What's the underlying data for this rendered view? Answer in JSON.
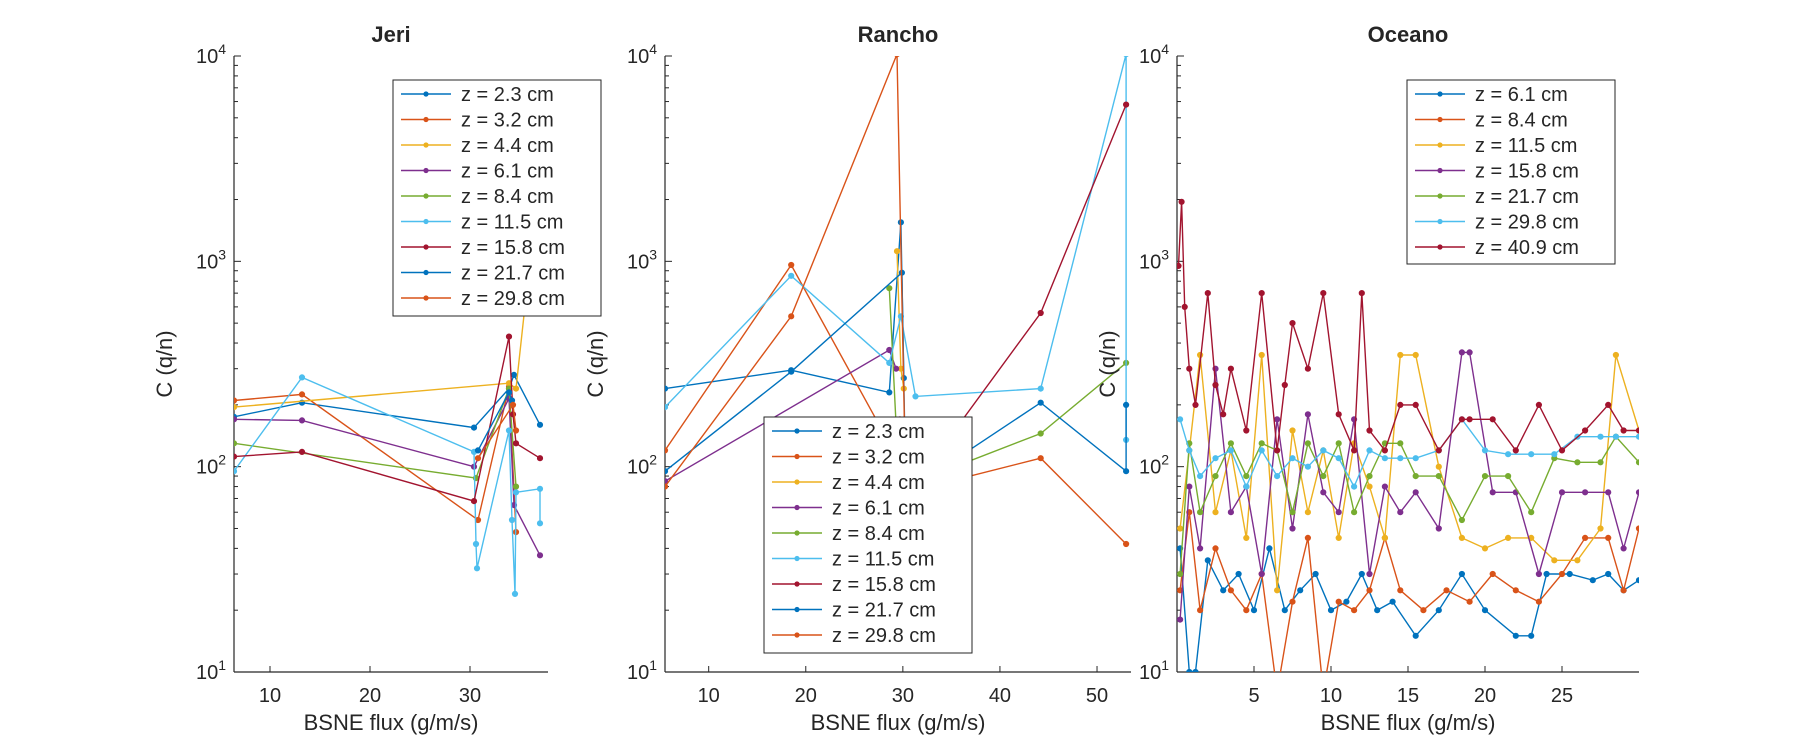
{
  "chart_data": [
    {
      "type": "line",
      "title": "Jeri",
      "xlabel": "BSNE flux (g/m/s)",
      "ylabel": "C (q/n)",
      "xlim": [
        6.4,
        37.8
      ],
      "ylim": [
        10,
        10000
      ],
      "yscale": "log",
      "xticks": [
        10,
        20,
        30
      ],
      "legend_location": "top-right",
      "series": [
        {
          "name": "z = 2.3 cm",
          "color": "#0072BD",
          "x": [
            6.4,
            13.2,
            30.4,
            33.9,
            34.4,
            37.0
          ],
          "y": [
            175,
            205,
            155,
            240,
            280,
            160
          ]
        },
        {
          "name": "z = 3.2 cm",
          "color": "#D95319",
          "x": [
            6.4,
            13.2,
            30.8,
            33.9,
            34.6
          ],
          "y": [
            210,
            225,
            55,
            245,
            48
          ]
        },
        {
          "name": "z = 4.4 cm",
          "color": "#EDB120",
          "x": [
            6.4,
            33.9,
            34.6,
            37.0
          ],
          "y": [
            195,
            255,
            240,
            2850
          ]
        },
        {
          "name": "z = 6.1 cm",
          "color": "#7E2F8E",
          "x": [
            6.4,
            13.2,
            30.4,
            33.9,
            34.4,
            37.0
          ],
          "y": [
            170,
            168,
            100,
            215,
            65,
            37
          ]
        },
        {
          "name": "z = 8.4 cm",
          "color": "#77AC30",
          "x": [
            6.4,
            30.6,
            33.9,
            34.6
          ],
          "y": [
            130,
            88,
            240,
            80
          ]
        },
        {
          "name": "z = 11.5 cm",
          "color": "#4DBEEE",
          "x": [
            6.4,
            13.2,
            30.4,
            30.6,
            30.7,
            33.9,
            34.2,
            34.5,
            34.6,
            37.0,
            37.0
          ],
          "y": [
            95,
            272,
            118,
            42,
            32,
            150,
            55,
            24,
            75,
            78,
            53
          ]
        },
        {
          "name": "z = 15.8 cm",
          "color": "#A2142F",
          "x": [
            6.4,
            13.2,
            30.4,
            33.9,
            34.3,
            34.6,
            37.0
          ],
          "y": [
            112,
            118,
            68,
            430,
            180,
            130,
            110
          ]
        },
        {
          "name": "z = 21.7 cm",
          "color": "#0072BD",
          "x": [
            30.8,
            33.9,
            34.2
          ],
          "y": [
            120,
            230,
            210
          ]
        },
        {
          "name": "z = 29.8 cm",
          "color": "#D95319",
          "x": [
            30.8,
            34.3,
            34.6
          ],
          "y": [
            110,
            200,
            150
          ]
        }
      ]
    },
    {
      "type": "line",
      "title": "Rancho",
      "xlabel": "BSNE flux (g/m/s)",
      "ylabel": "C (q/n)",
      "xlim": [
        5.5,
        53.5
      ],
      "ylim": [
        10,
        10000
      ],
      "yscale": "log",
      "xticks": [
        10,
        20,
        30,
        40,
        50
      ],
      "legend_location": "bottom-left",
      "series": [
        {
          "name": "z = 2.3 cm",
          "color": "#0072BD",
          "x": [
            5.5,
            18.5,
            28.6,
            29.8,
            30.1
          ],
          "y": [
            240,
            295,
            230,
            1550,
            270
          ]
        },
        {
          "name": "z = 3.2 cm",
          "color": "#D95319",
          "x": [
            5.5,
            18.5,
            28.6,
            30.1
          ],
          "y": [
            120,
            960,
            130,
            100
          ]
        },
        {
          "name": "z = 4.4 cm",
          "color": "#EDB120",
          "x": [
            29.4,
            29.8,
            30.1
          ],
          "y": [
            1120,
            300,
            240
          ]
        },
        {
          "name": "z = 6.1 cm",
          "color": "#7E2F8E",
          "x": [
            5.5,
            28.6,
            29.3
          ],
          "y": [
            85,
            370,
            300
          ]
        },
        {
          "name": "z = 8.4 cm",
          "color": "#77AC30",
          "x": [
            28.6,
            29.4,
            31.5,
            44.2,
            53.0
          ],
          "y": [
            740,
            130,
            85,
            145,
            320
          ]
        },
        {
          "name": "z = 11.5 cm",
          "color": "#4DBEEE",
          "x": [
            5.5,
            18.5,
            28.6,
            29.8,
            31.3,
            44.2,
            53.0,
            53.0
          ],
          "y": [
            195,
            850,
            320,
            540,
            220,
            240,
            10200,
            135
          ]
        },
        {
          "name": "z = 15.8 cm",
          "color": "#A2142F",
          "x": [
            29.7,
            30.2,
            44.2,
            53.0
          ],
          "y": [
            170,
            70,
            560,
            5800
          ]
        },
        {
          "name": "z = 21.7 cm",
          "color": "#0072BD",
          "x": [
            5.5,
            18.5,
            29.9,
            30.3,
            44.2,
            53.0,
            53.0
          ],
          "y": [
            95,
            290,
            880,
            75,
            205,
            95,
            200
          ]
        },
        {
          "name": "z = 29.8 cm",
          "color": "#D95319",
          "x": [
            5.5,
            18.5,
            29.4,
            30.3,
            44.2,
            53.0
          ],
          "y": [
            80,
            540,
            10200,
            75,
            110,
            42
          ]
        }
      ]
    },
    {
      "type": "line",
      "title": "Oceano",
      "xlabel": "BSNE flux (g/m/s)",
      "ylabel": "C (q/n)",
      "xlim": [
        0,
        30
      ],
      "ylim": [
        10,
        10000
      ],
      "yscale": "log",
      "xticks": [
        5,
        10,
        15,
        20,
        25
      ],
      "legend_location": "top-right",
      "series": [
        {
          "name": "z = 6.1 cm",
          "color": "#0072BD",
          "x": [
            0.2,
            0.8,
            1.2,
            2.0,
            3.0,
            4.0,
            5.0,
            6.0,
            7.0,
            8.0,
            9.0,
            10.0,
            11.0,
            12.0,
            13.0,
            14.0,
            15.5,
            17.0,
            18.5,
            20.0,
            22.0,
            23.0,
            24.0,
            25.5,
            27.0,
            28.0,
            29.0,
            30.0
          ],
          "y": [
            40,
            10,
            10,
            35,
            25,
            30,
            20,
            40,
            20,
            25,
            30,
            20,
            22,
            30,
            20,
            22,
            15,
            20,
            30,
            20,
            15,
            15,
            30,
            30,
            28,
            30,
            25,
            28
          ]
        },
        {
          "name": "z = 8.4 cm",
          "color": "#D95319",
          "x": [
            0.2,
            0.8,
            1.5,
            2.5,
            3.5,
            4.5,
            5.5,
            6.5,
            7.5,
            8.5,
            9.5,
            10.5,
            11.5,
            12.5,
            13.5,
            14.5,
            16.0,
            17.5,
            19.0,
            20.5,
            22.0,
            23.5,
            25.0,
            26.5,
            28.0,
            29.0,
            30.0
          ],
          "y": [
            25,
            60,
            20,
            40,
            25,
            20,
            30,
            8,
            22,
            45,
            8,
            22,
            20,
            25,
            45,
            25,
            20,
            25,
            22,
            30,
            25,
            22,
            30,
            45,
            45,
            25,
            50
          ]
        },
        {
          "name": "z = 11.5 cm",
          "color": "#EDB120",
          "x": [
            0.2,
            0.8,
            1.5,
            2.5,
            3.5,
            4.5,
            5.5,
            6.5,
            7.5,
            8.5,
            9.5,
            10.5,
            11.5,
            12.5,
            13.5,
            14.5,
            15.5,
            17.0,
            18.5,
            20.0,
            21.5,
            23.0,
            24.5,
            26.0,
            27.5,
            28.5,
            30.0
          ],
          "y": [
            50,
            120,
            350,
            60,
            120,
            45,
            350,
            25,
            150,
            60,
            120,
            45,
            130,
            80,
            45,
            350,
            350,
            100,
            45,
            40,
            45,
            45,
            35,
            35,
            50,
            350,
            150
          ]
        },
        {
          "name": "z = 15.8 cm",
          "color": "#7E2F8E",
          "x": [
            0.2,
            0.8,
            1.5,
            2.5,
            3.5,
            4.5,
            5.5,
            6.5,
            7.5,
            8.5,
            9.5,
            10.5,
            11.5,
            12.5,
            13.5,
            14.5,
            15.5,
            17.0,
            18.5,
            19.0,
            20.5,
            22.0,
            23.5,
            25.0,
            26.5,
            28.0,
            29.0,
            30.0
          ],
          "y": [
            18,
            80,
            40,
            300,
            60,
            80,
            30,
            170,
            50,
            180,
            75,
            60,
            170,
            30,
            80,
            60,
            75,
            50,
            360,
            360,
            75,
            75,
            30,
            75,
            75,
            75,
            40,
            75
          ]
        },
        {
          "name": "z = 21.7 cm",
          "color": "#77AC30",
          "x": [
            0.2,
            0.8,
            1.5,
            2.5,
            3.5,
            4.5,
            5.5,
            6.5,
            7.5,
            8.5,
            9.5,
            10.5,
            11.5,
            12.5,
            13.5,
            14.5,
            15.5,
            17.0,
            18.5,
            20.0,
            21.5,
            23.0,
            24.5,
            26.0,
            27.5,
            28.5,
            30.0
          ],
          "y": [
            30,
            130,
            60,
            90,
            130,
            90,
            130,
            120,
            60,
            130,
            90,
            130,
            60,
            90,
            130,
            130,
            90,
            90,
            55,
            90,
            90,
            60,
            110,
            105,
            105,
            140,
            105
          ]
        },
        {
          "name": "z = 29.8 cm",
          "color": "#4DBEEE",
          "x": [
            0.2,
            0.8,
            1.5,
            2.5,
            3.5,
            4.5,
            5.5,
            6.5,
            7.5,
            8.5,
            9.5,
            10.5,
            11.5,
            12.5,
            13.5,
            14.5,
            15.5,
            17.0,
            18.5,
            20.0,
            21.5,
            23.0,
            24.5,
            26.0,
            27.5,
            28.5,
            30.0
          ],
          "y": [
            170,
            120,
            90,
            110,
            120,
            80,
            120,
            90,
            110,
            100,
            120,
            110,
            80,
            120,
            110,
            110,
            110,
            120,
            170,
            120,
            115,
            115,
            115,
            140,
            140,
            140,
            140
          ]
        },
        {
          "name": "z = 40.9 cm",
          "color": "#A2142F",
          "x": [
            0.1,
            0.3,
            0.5,
            0.8,
            1.2,
            2.0,
            2.5,
            3.0,
            3.5,
            4.5,
            5.5,
            6.5,
            7.0,
            7.5,
            8.5,
            9.5,
            10.5,
            11.5,
            12.0,
            12.5,
            13.5,
            14.5,
            15.5,
            17.0,
            18.5,
            19.0,
            20.5,
            22.0,
            23.5,
            25.0,
            26.5,
            28.0,
            29.0,
            30.0
          ],
          "y": [
            950,
            1950,
            600,
            300,
            200,
            700,
            250,
            180,
            300,
            150,
            700,
            120,
            250,
            500,
            300,
            700,
            180,
            120,
            700,
            150,
            120,
            200,
            200,
            120,
            170,
            170,
            170,
            120,
            200,
            120,
            150,
            200,
            150,
            150
          ]
        }
      ]
    }
  ]
}
